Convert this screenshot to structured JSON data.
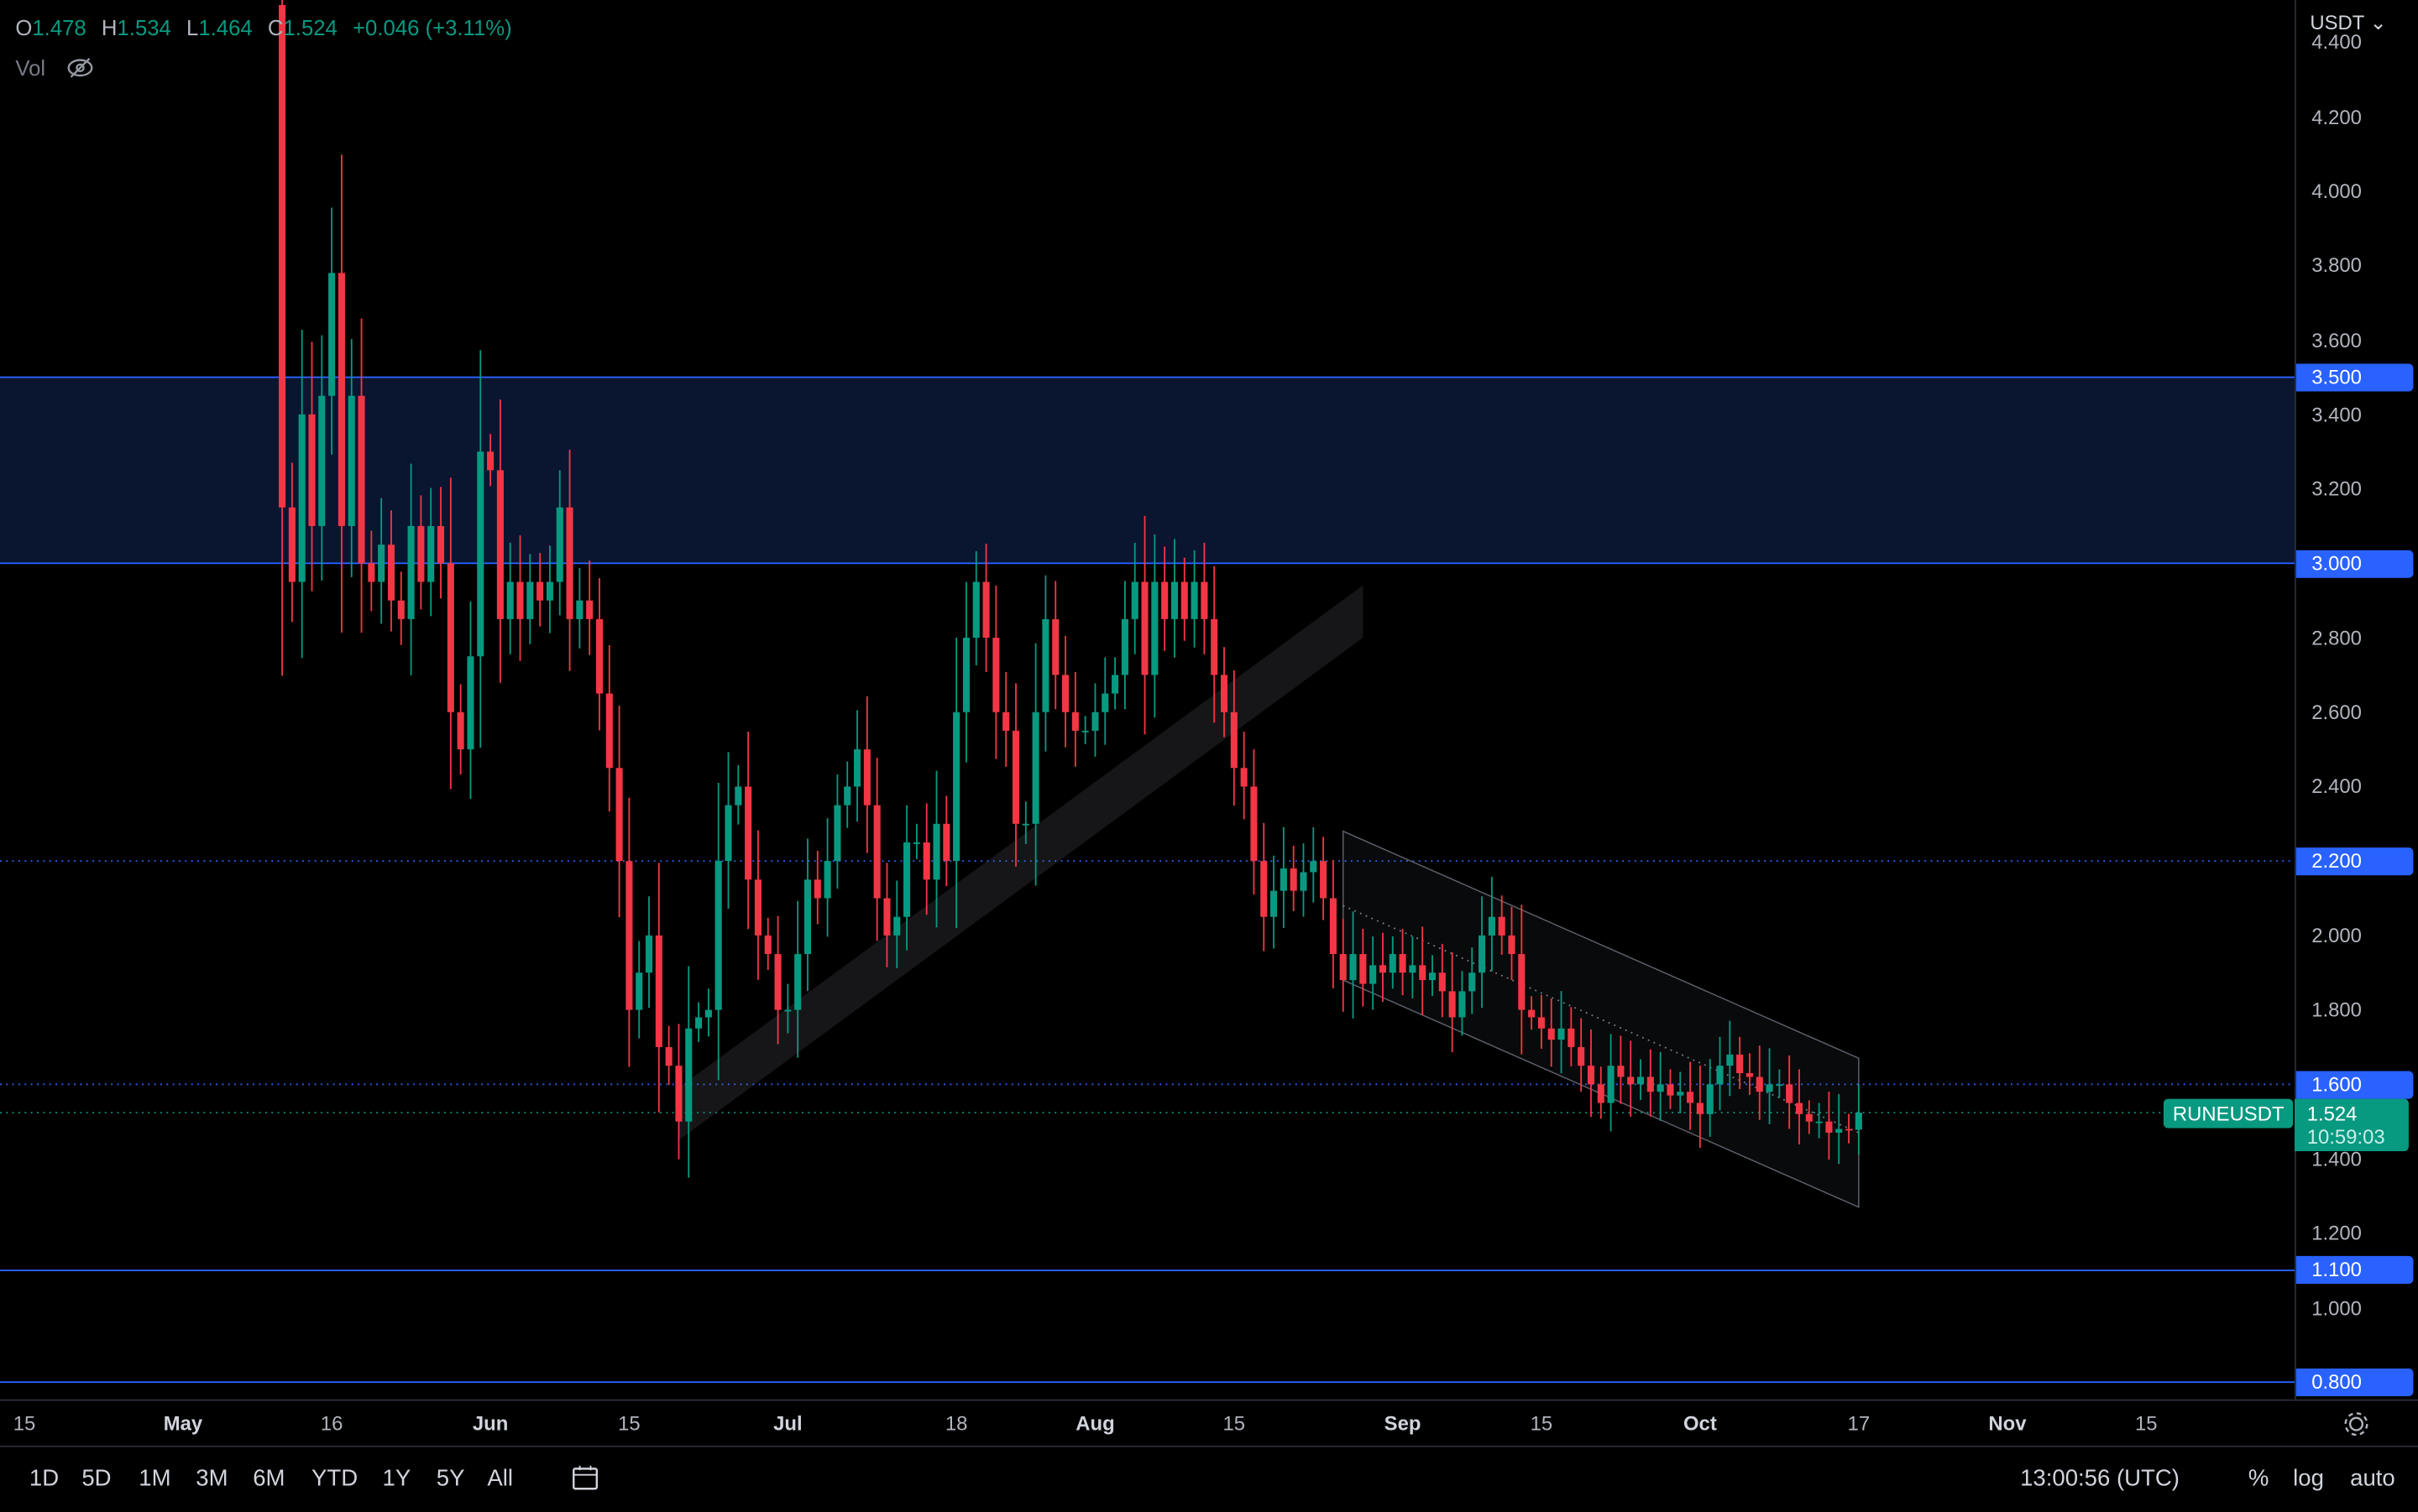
{
  "header": {
    "currency": "USDT",
    "symbol": "RUNEUSDT",
    "ohlc": {
      "o_label": "O",
      "o": "1.478",
      "h_label": "H",
      "h": "1.534",
      "l_label": "L",
      "l": "1.464",
      "c_label": "C",
      "c": "1.524",
      "change": "+0.046 (+3.11%)"
    },
    "vol_label": "Vol",
    "vol_icon": "eye-off-icon"
  },
  "current": {
    "price": "1.524",
    "countdown": "10:59:03"
  },
  "price_axis": {
    "ticks": [
      "4.400",
      "4.200",
      "4.000",
      "3.800",
      "3.600",
      "3.400",
      "3.200",
      "2.800",
      "2.600",
      "2.400",
      "2.000",
      "1.800",
      "1.400",
      "1.200",
      "1.000"
    ],
    "levels": [
      "3.500",
      "3.000",
      "2.200",
      "1.600",
      "1.100",
      "0.800"
    ]
  },
  "time_axis": {
    "labels": [
      {
        "t": "15",
        "d": "2022-04-15"
      },
      {
        "t": "May",
        "d": "2022-05-01",
        "b": true
      },
      {
        "t": "16",
        "d": "2022-05-16"
      },
      {
        "t": "Jun",
        "d": "2022-06-01",
        "b": true
      },
      {
        "t": "15",
        "d": "2022-06-15"
      },
      {
        "t": "Jul",
        "d": "2022-07-01",
        "b": true
      },
      {
        "t": "18",
        "d": "2022-07-18"
      },
      {
        "t": "Aug",
        "d": "2022-08-01",
        "b": true
      },
      {
        "t": "15",
        "d": "2022-08-15"
      },
      {
        "t": "Sep",
        "d": "2022-09-01",
        "b": true
      },
      {
        "t": "15",
        "d": "2022-09-15"
      },
      {
        "t": "Oct",
        "d": "2022-10-01",
        "b": true
      },
      {
        "t": "17",
        "d": "2022-10-17"
      },
      {
        "t": "Nov",
        "d": "2022-11-01",
        "b": true
      },
      {
        "t": "15",
        "d": "2022-11-15"
      }
    ]
  },
  "toolbar": {
    "ranges": [
      "1D",
      "5D",
      "1M",
      "3M",
      "6M",
      "YTD",
      "1Y",
      "5Y",
      "All"
    ],
    "clock": "13:00:56 (UTC)",
    "percent": "%",
    "log": "log",
    "auto": "auto"
  },
  "colors": {
    "up": "#089981",
    "down": "#f23645",
    "zone": "#0a1530",
    "level": "#2962ff"
  },
  "chart_data": {
    "type": "candlestick",
    "symbol": "RUNEUSDT",
    "interval": "1D",
    "ylim": [
      0.7,
      4.45
    ],
    "grid": false,
    "start_date": "2022-05-11",
    "first_open": 4.5,
    "closes": [
      3.15,
      2.95,
      3.4,
      3.1,
      3.45,
      3.78,
      3.1,
      3.45,
      3.0,
      2.95,
      3.05,
      2.9,
      2.85,
      3.1,
      2.95,
      3.1,
      3.0,
      2.6,
      2.5,
      2.75,
      3.3,
      3.25,
      2.85,
      2.95,
      2.85,
      2.95,
      2.9,
      2.95,
      3.15,
      2.85,
      2.9,
      2.85,
      2.65,
      2.45,
      2.2,
      1.8,
      1.9,
      2.0,
      1.7,
      1.65,
      1.5,
      1.75,
      1.78,
      1.8,
      2.2,
      2.35,
      2.4,
      2.15,
      2.0,
      1.95,
      1.8,
      1.8,
      1.95,
      2.15,
      2.1,
      2.2,
      2.35,
      2.4,
      2.5,
      2.35,
      2.1,
      2.0,
      2.05,
      2.25,
      2.25,
      2.15,
      2.3,
      2.2,
      2.6,
      2.8,
      2.95,
      2.8,
      2.6,
      2.55,
      2.3,
      2.3,
      2.6,
      2.85,
      2.7,
      2.6,
      2.55,
      2.55,
      2.6,
      2.65,
      2.7,
      2.85,
      2.95,
      2.7,
      2.95,
      2.85,
      2.95,
      2.85,
      2.95,
      2.85,
      2.7,
      2.6,
      2.45,
      2.4,
      2.2,
      2.05,
      2.12,
      2.18,
      2.12,
      2.17,
      2.2,
      2.1,
      1.95,
      1.88,
      1.95,
      1.87,
      1.92,
      1.9,
      1.95,
      1.9,
      1.92,
      1.88,
      1.9,
      1.85,
      1.78,
      1.85,
      1.9,
      2.0,
      2.05,
      2.0,
      1.95,
      1.8,
      1.78,
      1.75,
      1.72,
      1.75,
      1.7,
      1.65,
      1.6,
      1.55,
      1.65,
      1.62,
      1.6,
      1.62,
      1.58,
      1.6,
      1.57,
      1.58,
      1.55,
      1.52,
      1.6,
      1.65,
      1.68,
      1.63,
      1.62,
      1.58,
      1.6,
      1.6,
      1.55,
      1.52,
      1.5,
      1.5,
      1.47,
      1.48,
      1.478,
      1.524
    ],
    "zones": [
      {
        "from": 3.0,
        "to": 3.5
      }
    ],
    "horizontal_levels": [
      {
        "price": 2.2,
        "style": "dotted"
      },
      {
        "price": 1.6,
        "style": "dotted"
      },
      {
        "price": 1.1,
        "style": "solid"
      },
      {
        "price": 0.8,
        "style": "solid"
      }
    ],
    "rising_channel": {
      "start": {
        "date": "2022-06-20",
        "price": 1.45
      },
      "end": {
        "date": "2022-08-28",
        "price": 2.8
      }
    },
    "descending_channel": {
      "start": {
        "date": "2022-08-26",
        "upper": 2.28,
        "lower": 1.88
      },
      "end": {
        "date": "2022-10-17",
        "upper": 1.67,
        "lower": 1.27
      }
    }
  }
}
